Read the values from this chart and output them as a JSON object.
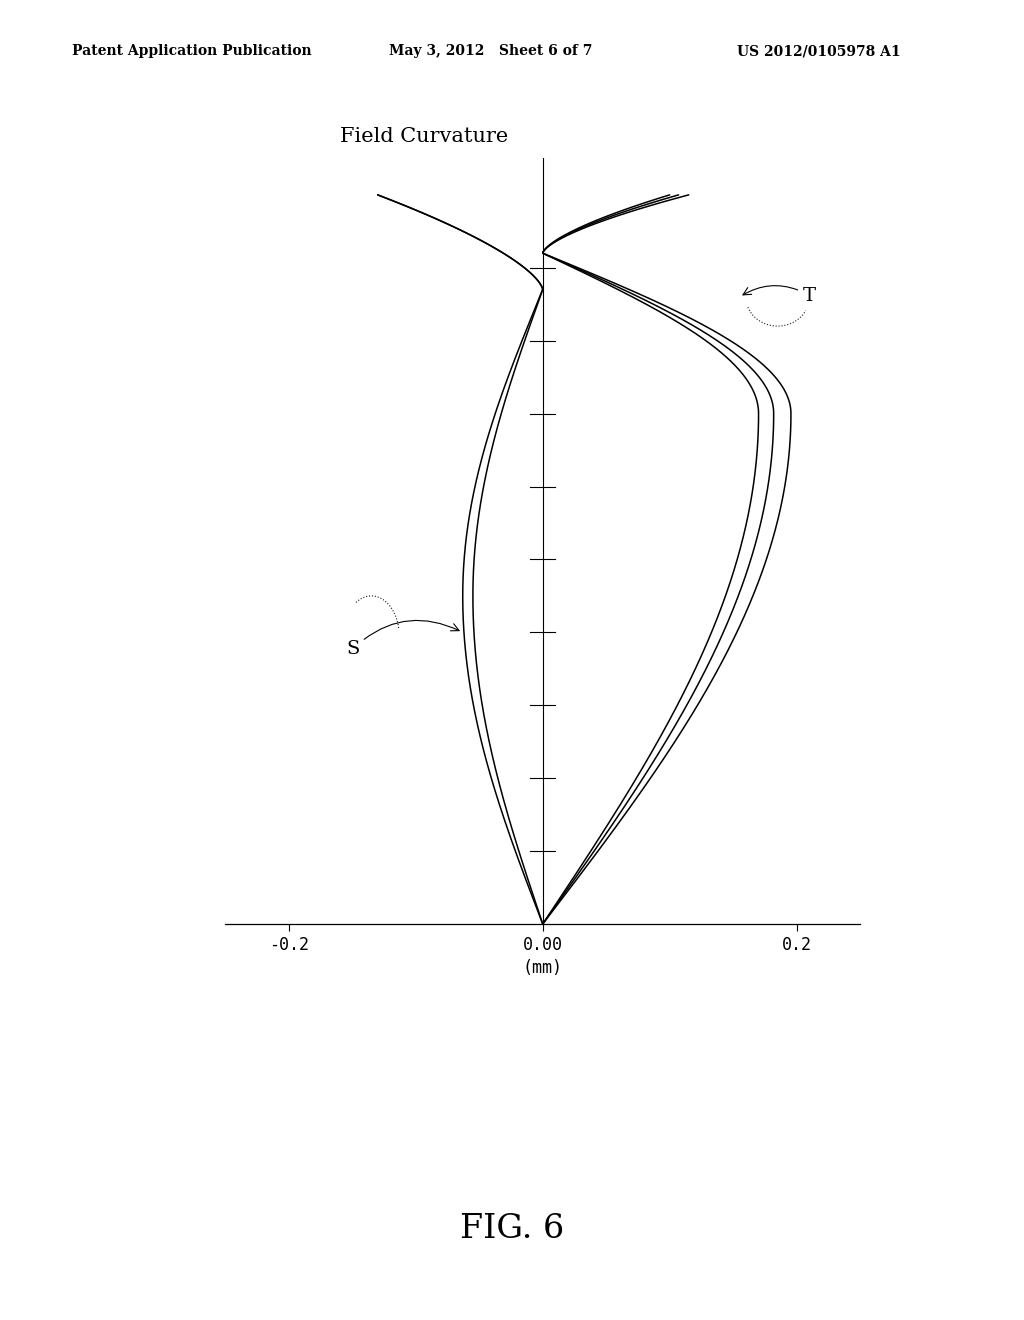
{
  "title": "Field Curvature",
  "xlabel": "(mm)",
  "xlim": [
    -0.25,
    0.25
  ],
  "ylim": [
    0.0,
    1.0
  ],
  "background_color": "#ffffff",
  "line_color": "#000000",
  "header_left": "Patent Application Publication",
  "header_center": "May 3, 2012   Sheet 6 of 7",
  "header_right": "US 2012/0105978 A1",
  "figure_label": "FIG. 6",
  "S_label": "S",
  "T_label": "T",
  "page_width": 10.24,
  "page_height": 13.2,
  "header_fontsize": 10,
  "title_fontsize": 15,
  "tick_label_fontsize": 12,
  "label_fontsize": 14,
  "fig_label_fontsize": 24
}
